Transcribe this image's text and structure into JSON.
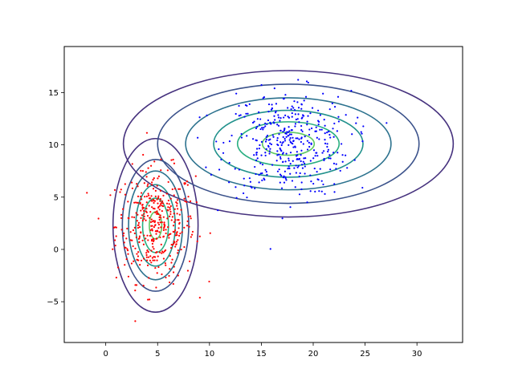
{
  "chart_data": {
    "type": "scatter",
    "title": "",
    "xlabel": "",
    "ylabel": "",
    "xlim": [
      -4.0,
      34.4
    ],
    "ylim": [
      -8.9,
      19.4
    ],
    "xticks": [
      0,
      5,
      10,
      15,
      20,
      25,
      30
    ],
    "yticks": [
      -5,
      0,
      5,
      10,
      15
    ],
    "xtick_labels": [
      "0",
      "5",
      "10",
      "15",
      "20",
      "25",
      "30"
    ],
    "ytick_labels": [
      "−5",
      "0",
      "5",
      "10",
      "15"
    ],
    "grid": false,
    "legend": false,
    "clusters": [
      {
        "color": "#ff0000",
        "mean": [
          4.8,
          2.3
        ],
        "std": [
          1.9,
          2.7
        ],
        "point_count": 400,
        "contour_semi_axes": [
          [
            4.1,
            8.3
          ],
          [
            3.2,
            6.3
          ],
          [
            2.6,
            5.2
          ],
          [
            1.9,
            3.9
          ],
          [
            1.25,
            2.6
          ],
          [
            0.6,
            1.3
          ]
        ]
      },
      {
        "color": "#0000ff",
        "mean": [
          17.6,
          10.1
        ],
        "std": [
          3.0,
          2.5
        ],
        "point_count": 400,
        "contour_semi_axes": [
          [
            15.9,
            7.0
          ],
          [
            12.6,
            5.7
          ],
          [
            9.9,
            4.4
          ],
          [
            7.2,
            3.2
          ],
          [
            4.9,
            2.1
          ],
          [
            2.5,
            1.1
          ]
        ]
      }
    ],
    "contour_colors": [
      "#46327e",
      "#3b528b",
      "#2c728e",
      "#21918c",
      "#28ae80",
      "#5ec962",
      "#addc30"
    ]
  }
}
